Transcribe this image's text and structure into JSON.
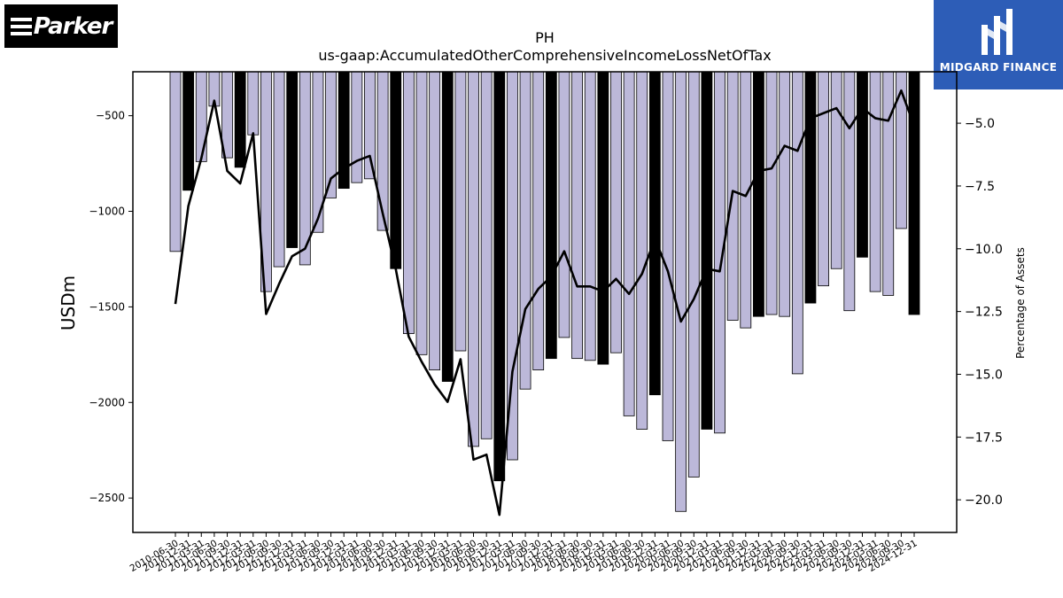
{
  "logos": {
    "left": "Parker",
    "right": "MIDGARD FINANCE"
  },
  "colors": {
    "bar_normal": "#bcb8d9",
    "bar_highlight": "#000000",
    "line": "#000000",
    "right_logo_bg": "#2d5db7"
  },
  "chart_data": {
    "type": "bar",
    "title": "PH",
    "subtitle": "us-gaap:AccumulatedOtherComprehensiveIncomeLossNetOfTax",
    "ylabel": "USDm",
    "y2label": "Percentage of Assets",
    "ylim": [
      -2680,
      -270
    ],
    "y2lim": [
      -21.3,
      -2.95
    ],
    "yticks": [
      -500,
      -1000,
      -1500,
      -2000,
      -2500
    ],
    "y2ticks": [
      -5.0,
      -7.5,
      -10.0,
      -12.5,
      -15.0,
      -17.5,
      -20.0
    ],
    "ytick_labels": [
      "−500",
      "−1000",
      "−1500",
      "−2000",
      "−2500"
    ],
    "y2tick_labels": [
      "−5.0",
      "−7.5",
      "−10.0",
      "−12.5",
      "−15.0",
      "−17.5",
      "−20.0"
    ],
    "categories": [
      "2010-06-30",
      "2010-12-31",
      "2011-03-31",
      "2011-06-30",
      "2011-09-30",
      "2011-12-31",
      "2012-03-31",
      "2012-06-30",
      "2012-09-30",
      "2012-12-31",
      "2013-03-31",
      "2013-06-30",
      "2013-09-30",
      "2013-12-31",
      "2014-03-31",
      "2014-06-30",
      "2014-09-30",
      "2014-12-31",
      "2015-03-31",
      "2015-06-30",
      "2015-09-30",
      "2015-12-31",
      "2016-03-31",
      "2016-06-30",
      "2016-09-30",
      "2016-12-31",
      "2017-03-31",
      "2017-06-30",
      "2017-09-30",
      "2017-12-31",
      "2018-03-31",
      "2018-06-30",
      "2018-09-30",
      "2018-12-31",
      "2019-03-31",
      "2019-06-30",
      "2019-09-30",
      "2019-12-31",
      "2020-03-31",
      "2020-06-30",
      "2020-09-30",
      "2020-12-31",
      "2021-03-31",
      "2021-06-30",
      "2021-09-30",
      "2021-12-31",
      "2022-03-31",
      "2022-06-30",
      "2022-09-30",
      "2022-12-31",
      "2023-03-31",
      "2023-06-30",
      "2023-09-30",
      "2023-12-31",
      "2024-03-31",
      "2024-06-30",
      "2024-09-30",
      "2024-12-31"
    ],
    "series": [
      {
        "kind": "bar",
        "values": [
          -1210,
          -890,
          -740,
          -450,
          -720,
          -770,
          -600,
          -1420,
          -1290,
          -1190,
          -1280,
          -1110,
          -930,
          -880,
          -850,
          -830,
          -1100,
          -1300,
          -1640,
          -1750,
          -1830,
          -1890,
          -1730,
          -2230,
          -2190,
          -2410,
          -2300,
          -1930,
          -1830,
          -1770,
          -1660,
          -1770,
          -1780,
          -1800,
          -1740,
          -2070,
          -2140,
          -1960,
          -2200,
          -2570,
          -2390,
          -2140,
          -2160,
          -1570,
          -1610,
          -1550,
          -1540,
          -1550,
          -1850,
          -1480,
          -1390,
          -1300,
          -1520,
          -1240,
          -1420,
          -1440,
          -1090,
          -1540
        ],
        "highlight": [
          false,
          true,
          false,
          false,
          false,
          true,
          false,
          false,
          false,
          true,
          false,
          false,
          false,
          true,
          false,
          false,
          false,
          true,
          false,
          false,
          false,
          true,
          false,
          false,
          false,
          true,
          false,
          false,
          false,
          true,
          false,
          false,
          false,
          true,
          false,
          false,
          false,
          true,
          false,
          false,
          false,
          true,
          false,
          false,
          false,
          true,
          false,
          false,
          false,
          true,
          false,
          false,
          false,
          true,
          false,
          false,
          false,
          true
        ]
      },
      {
        "kind": "line",
        "axis": "right",
        "values": [
          -12.2,
          -8.3,
          -6.4,
          -4.1,
          -6.9,
          -7.4,
          -5.4,
          -12.6,
          -11.4,
          -10.3,
          -10.0,
          -8.8,
          -7.2,
          -6.8,
          -6.5,
          -6.3,
          -8.6,
          -10.8,
          -13.5,
          -14.5,
          -15.4,
          -16.1,
          -14.4,
          -18.4,
          -18.2,
          -20.6,
          -14.9,
          -12.4,
          -11.6,
          -11.1,
          -10.1,
          -11.5,
          -11.5,
          -11.7,
          -11.2,
          -11.8,
          -11.0,
          -9.6,
          -10.9,
          -12.9,
          -12.0,
          -10.8,
          -10.9,
          -7.7,
          -7.9,
          -6.9,
          -6.8,
          -5.9,
          -6.1,
          -4.8,
          -4.6,
          -4.4,
          -5.2,
          -4.4,
          -4.8,
          -4.9,
          -3.7,
          -5.1
        ]
      }
    ]
  }
}
